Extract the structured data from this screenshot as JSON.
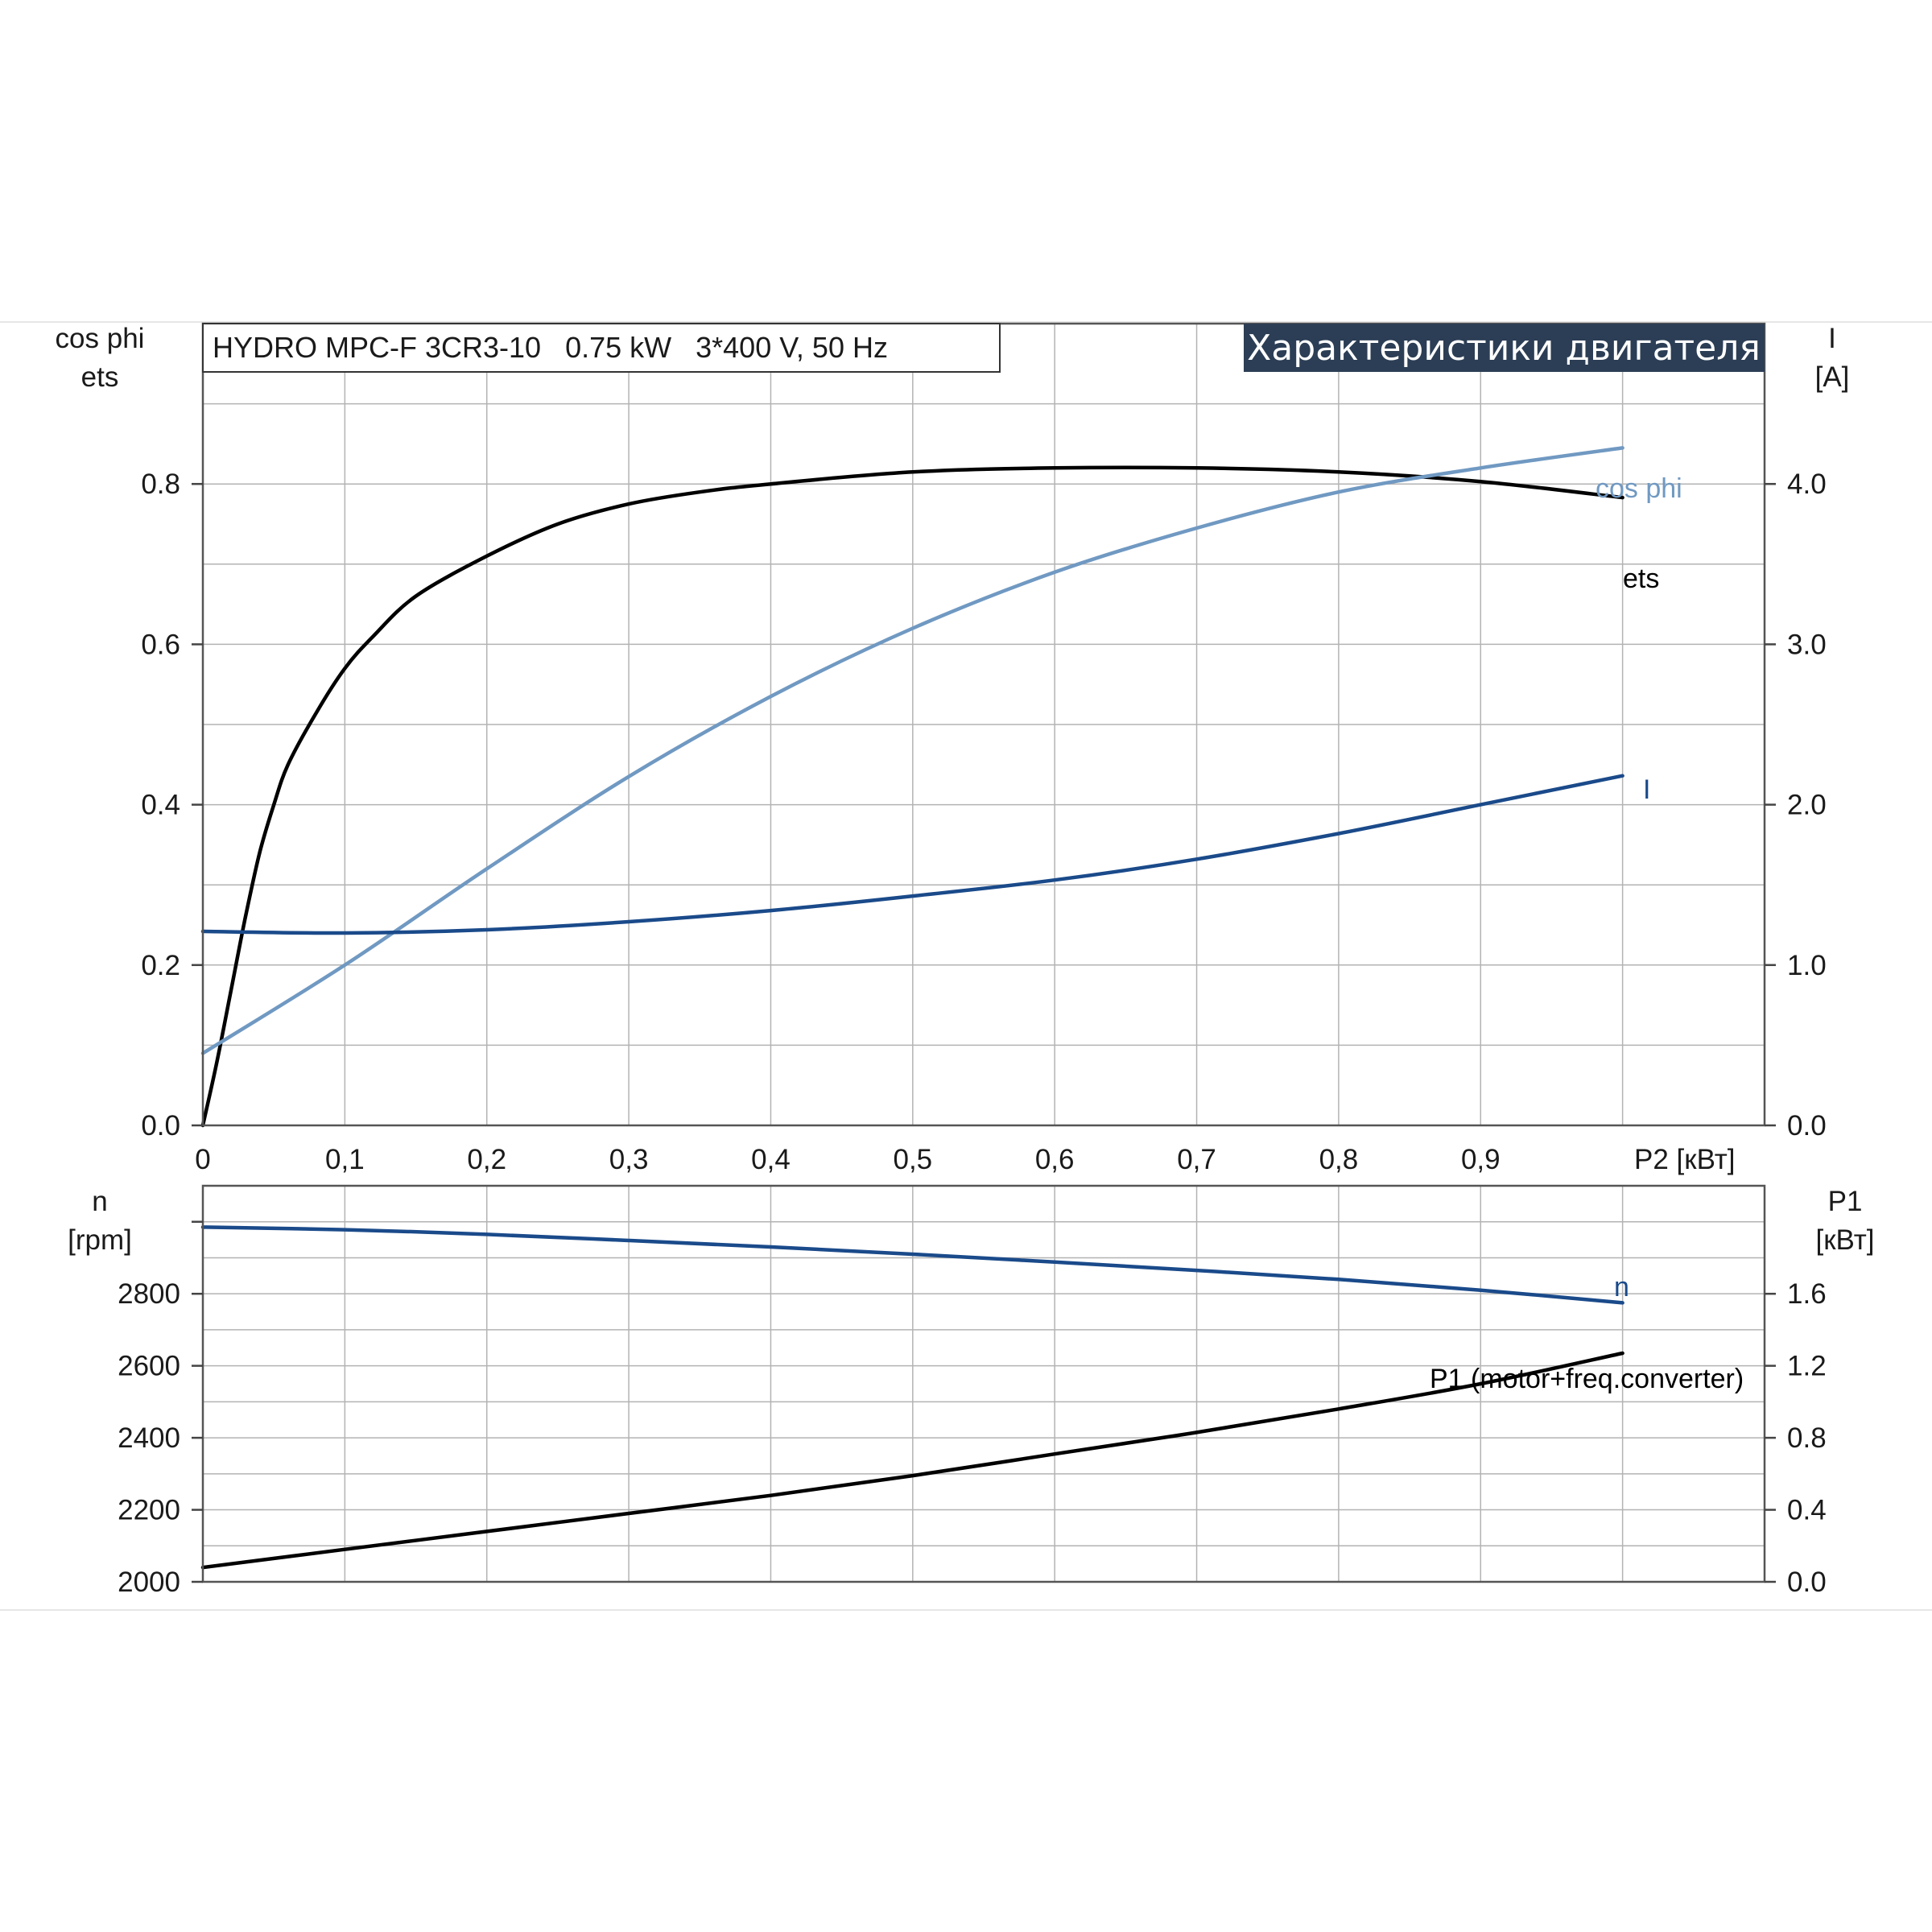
{
  "chart_data": [
    {
      "type": "line",
      "title": "Характеристики двигателя",
      "subtitle": "HYDRO MPC-F 3CR3-10   0.75 kW   3*400 V, 50 Hz",
      "xlabel": "P2 [кВт]",
      "xlim": [
        0,
        1.1
      ],
      "x_ticks": [
        "0",
        "0,1",
        "0,2",
        "0,3",
        "0,4",
        "0,5",
        "0,6",
        "0,7",
        "0,8",
        "0,9"
      ],
      "ylabel_left": [
        "cos phi",
        "ets"
      ],
      "ylim_left": [
        0,
        1.0
      ],
      "y_ticks_left": [
        "0.0",
        "0.2",
        "0.4",
        "0.6",
        "0.8"
      ],
      "ylabel_right": [
        "I",
        "[A]"
      ],
      "ylim_right": [
        0,
        5.0
      ],
      "y_ticks_right": [
        "0.0",
        "1.0",
        "2.0",
        "3.0",
        "4.0"
      ],
      "grid": true,
      "series": [
        {
          "name": "ets",
          "axis": "left",
          "color": "#000000",
          "x": [
            0.0,
            0.01,
            0.02,
            0.03,
            0.04,
            0.05,
            0.06,
            0.08,
            0.1,
            0.12,
            0.15,
            0.2,
            0.25,
            0.3,
            0.35,
            0.4,
            0.5,
            0.6,
            0.7,
            0.8,
            0.9,
            1.0
          ],
          "values": [
            0.0,
            0.08,
            0.17,
            0.26,
            0.34,
            0.4,
            0.45,
            0.515,
            0.57,
            0.61,
            0.66,
            0.71,
            0.75,
            0.775,
            0.79,
            0.8,
            0.815,
            0.82,
            0.82,
            0.815,
            0.803,
            0.783
          ]
        },
        {
          "name": "cos phi",
          "axis": "left",
          "color": "#7099c2",
          "x": [
            0.0,
            0.1,
            0.2,
            0.3,
            0.4,
            0.5,
            0.6,
            0.7,
            0.8,
            0.9,
            1.0
          ],
          "values": [
            0.09,
            0.2,
            0.32,
            0.435,
            0.535,
            0.62,
            0.69,
            0.745,
            0.79,
            0.82,
            0.845
          ]
        },
        {
          "name": "I",
          "axis": "right",
          "color": "#1a4a8a",
          "x": [
            0.0,
            0.1,
            0.2,
            0.3,
            0.4,
            0.5,
            0.6,
            0.7,
            0.8,
            0.9,
            1.0
          ],
          "values": [
            1.21,
            1.2,
            1.22,
            1.27,
            1.34,
            1.43,
            1.53,
            1.66,
            1.82,
            2.0,
            2.18
          ]
        }
      ]
    },
    {
      "type": "line",
      "xlim": [
        0,
        1.1
      ],
      "ylabel_left": [
        "n",
        "[rpm]"
      ],
      "ylim_left": [
        2000,
        3100
      ],
      "y_ticks_left": [
        "2000",
        "2200",
        "2400",
        "2600",
        "2800"
      ],
      "ylabel_right": [
        "P1",
        "[кВт]"
      ],
      "ylim_right": [
        0,
        2.2
      ],
      "y_ticks_right": [
        "0.0",
        "0.4",
        "0.8",
        "1.2",
        "1.6"
      ],
      "grid": true,
      "series": [
        {
          "name": "n",
          "axis": "left",
          "color": "#1a4a8a",
          "x": [
            0.0,
            0.1,
            0.2,
            0.3,
            0.4,
            0.5,
            0.6,
            0.7,
            0.8,
            0.9,
            1.0
          ],
          "values": [
            2985,
            2978,
            2965,
            2948,
            2930,
            2910,
            2888,
            2865,
            2840,
            2810,
            2775
          ]
        },
        {
          "name": "P1 (motor+freq.converter)",
          "axis": "right",
          "color": "#000000",
          "x": [
            0.0,
            0.1,
            0.2,
            0.3,
            0.4,
            0.5,
            0.6,
            0.7,
            0.8,
            0.9,
            1.0
          ],
          "values": [
            0.08,
            0.18,
            0.28,
            0.38,
            0.48,
            0.59,
            0.71,
            0.83,
            0.96,
            1.1,
            1.27
          ]
        }
      ]
    }
  ]
}
